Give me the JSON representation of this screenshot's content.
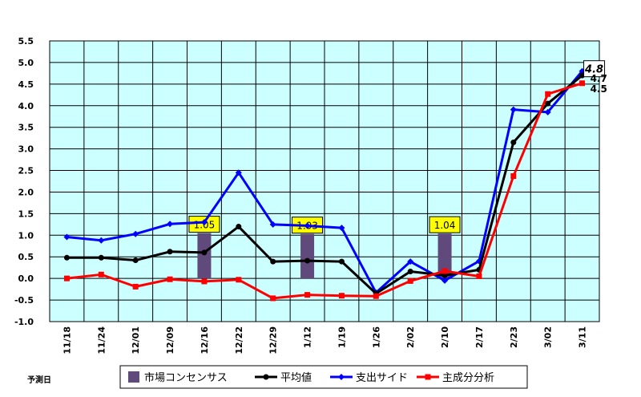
{
  "chart_data": {
    "type": "line",
    "categories": [
      "11/18",
      "11/24",
      "12/01",
      "12/09",
      "12/16",
      "12/22",
      "12/29",
      "1/12",
      "1/19",
      "1/26",
      "2/02",
      "2/10",
      "2/17",
      "2/23",
      "3/02",
      "3/11"
    ],
    "ylim": [
      -1.0,
      5.5
    ],
    "yticks": [
      "5.5",
      "5.0",
      "4.5",
      "4.0",
      "3.5",
      "3.0",
      "2.5",
      "2.0",
      "1.5",
      "1.0",
      "0.5",
      "0.0",
      "-0.5",
      "-1.0"
    ],
    "xlabel": "予測日",
    "grid": true,
    "plot_background": "#ccffff",
    "bar_series": {
      "name": "市場コンセンサス",
      "color": "#604a7b",
      "points": [
        {
          "index": 4,
          "value": 1.05,
          "label": "1.05"
        },
        {
          "index": 7,
          "value": 1.03,
          "label": "1.03"
        },
        {
          "index": 11,
          "value": 1.04,
          "label": "1.04"
        }
      ]
    },
    "series": [
      {
        "name": "平均値",
        "color": "#000000",
        "marker": "circle",
        "values": [
          0.48,
          0.48,
          0.42,
          0.62,
          0.6,
          1.2,
          0.39,
          0.41,
          0.39,
          -0.35,
          0.16,
          0.07,
          0.2,
          3.15,
          4.05,
          4.7
        ]
      },
      {
        "name": "支出サイド",
        "color": "#0000ff",
        "marker": "diamond",
        "values": [
          0.96,
          0.88,
          1.03,
          1.26,
          1.3,
          2.45,
          1.25,
          1.22,
          1.17,
          -0.33,
          0.39,
          -0.05,
          0.4,
          3.91,
          3.85,
          4.8
        ]
      },
      {
        "name": "主成分分析",
        "color": "#ff0000",
        "marker": "square",
        "values": [
          0.0,
          0.09,
          -0.19,
          -0.02,
          -0.07,
          -0.03,
          -0.46,
          -0.38,
          -0.4,
          -0.41,
          -0.06,
          0.17,
          0.05,
          2.37,
          4.27,
          4.52
        ]
      }
    ],
    "end_labels": [
      "4.8",
      "4.7",
      "4.5"
    ]
  }
}
